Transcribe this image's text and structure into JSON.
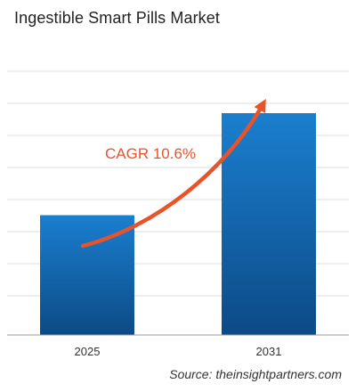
{
  "chart_data": {
    "type": "bar",
    "title": "Ingestible Smart Pills Market",
    "categories": [
      "2025",
      "2031"
    ],
    "values": [
      0.54,
      1.0
    ],
    "value_scale": "relative to 2031",
    "annotation": "CAGR 10.6%",
    "xlabel": "",
    "ylabel": "",
    "grid": true,
    "colors": {
      "bar_top": "#1a7fcf",
      "bar_bottom": "#0d4a86",
      "arrow": "#e8532a",
      "grid": "#dcdcdc",
      "annotation_text": "#e8532a"
    }
  },
  "source_text": "Source: theinsightpartners.com"
}
